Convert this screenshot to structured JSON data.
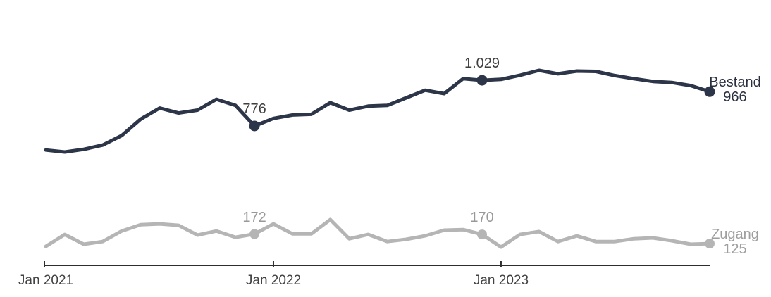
{
  "colors": {
    "background": "#ffffff",
    "axis": "#2e2e2e",
    "axis_label": "#424242",
    "bestand_line": "#2d3548",
    "bestand_value_label": "#3f3f3f",
    "bestand_end_label": "#2a3040",
    "zugang_line": "#b5b5b5",
    "zugang_value_label": "#999999",
    "zugang_end_label": "#9e9e9e"
  },
  "chart_data": {
    "type": "line",
    "title": "",
    "grid": false,
    "legend_position": "end-of-line labels (right of last point)",
    "x_axis": {
      "range": "Jan 2021 - Dec 2023 (monthly, 36 points)",
      "ticks": [
        {
          "month_index": 0,
          "label": "Jan 2021"
        },
        {
          "month_index": 12,
          "label": "Jan 2022"
        },
        {
          "month_index": 24,
          "label": "Jan 2023"
        }
      ]
    },
    "series": [
      {
        "name": "Bestand",
        "color": "#2d3548",
        "label_color": "#3f3f3f",
        "end_label_color": "#2a3040",
        "values": [
          643,
          632,
          647,
          670,
          723,
          814,
          875,
          848,
          864,
          924,
          890,
          776,
          818,
          837,
          841,
          905,
          864,
          886,
          890,
          932,
          974,
          955,
          1038,
          1029,
          1034,
          1057,
          1084,
          1065,
          1080,
          1078,
          1055,
          1038,
          1023,
          1017,
          1000,
          966
        ],
        "markers": [
          {
            "month_index": 11,
            "label": "776"
          },
          {
            "month_index": 23,
            "label": "1.029"
          }
        ],
        "end_label": {
          "name": "Bestand",
          "value": "966"
        }
      },
      {
        "name": "Zugang",
        "color": "#b5b5b5",
        "label_color": "#999999",
        "end_label_color": "#9e9e9e",
        "values": [
          111,
          170,
          122,
          135,
          187,
          218,
          222,
          215,
          167,
          187,
          156,
          172,
          222,
          173,
          173,
          243,
          149,
          170,
          135,
          146,
          163,
          191,
          194,
          170,
          108,
          170,
          184,
          135,
          163,
          135,
          135,
          149,
          153,
          139,
          122,
          125
        ],
        "markers": [
          {
            "month_index": 11,
            "label": "172"
          },
          {
            "month_index": 23,
            "label": "170"
          }
        ],
        "end_label": {
          "name": "Zugang",
          "value": "125"
        }
      }
    ]
  }
}
